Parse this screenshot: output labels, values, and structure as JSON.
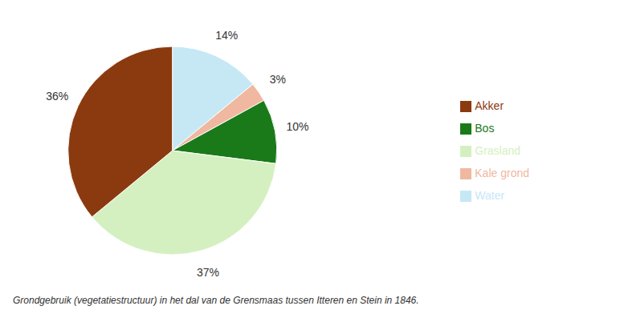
{
  "chart_data": {
    "type": "pie",
    "categories": [
      "Water",
      "Kale grond",
      "Bos",
      "Grasland",
      "Akker"
    ],
    "values": [
      14,
      3,
      10,
      37,
      36
    ],
    "value_labels": [
      "14%",
      "3%",
      "10%",
      "37%",
      "36%"
    ],
    "colors": [
      "#c6e8f5",
      "#f0b8a0",
      "#1a7a1a",
      "#d4f0c0",
      "#8b3a0f"
    ],
    "data_labels": true,
    "legend": "right",
    "caption": "Grondgebruik (vegetatiestructuur) in het dal van de Grensmaas tussen Itteren en Stein in 1846."
  }
}
